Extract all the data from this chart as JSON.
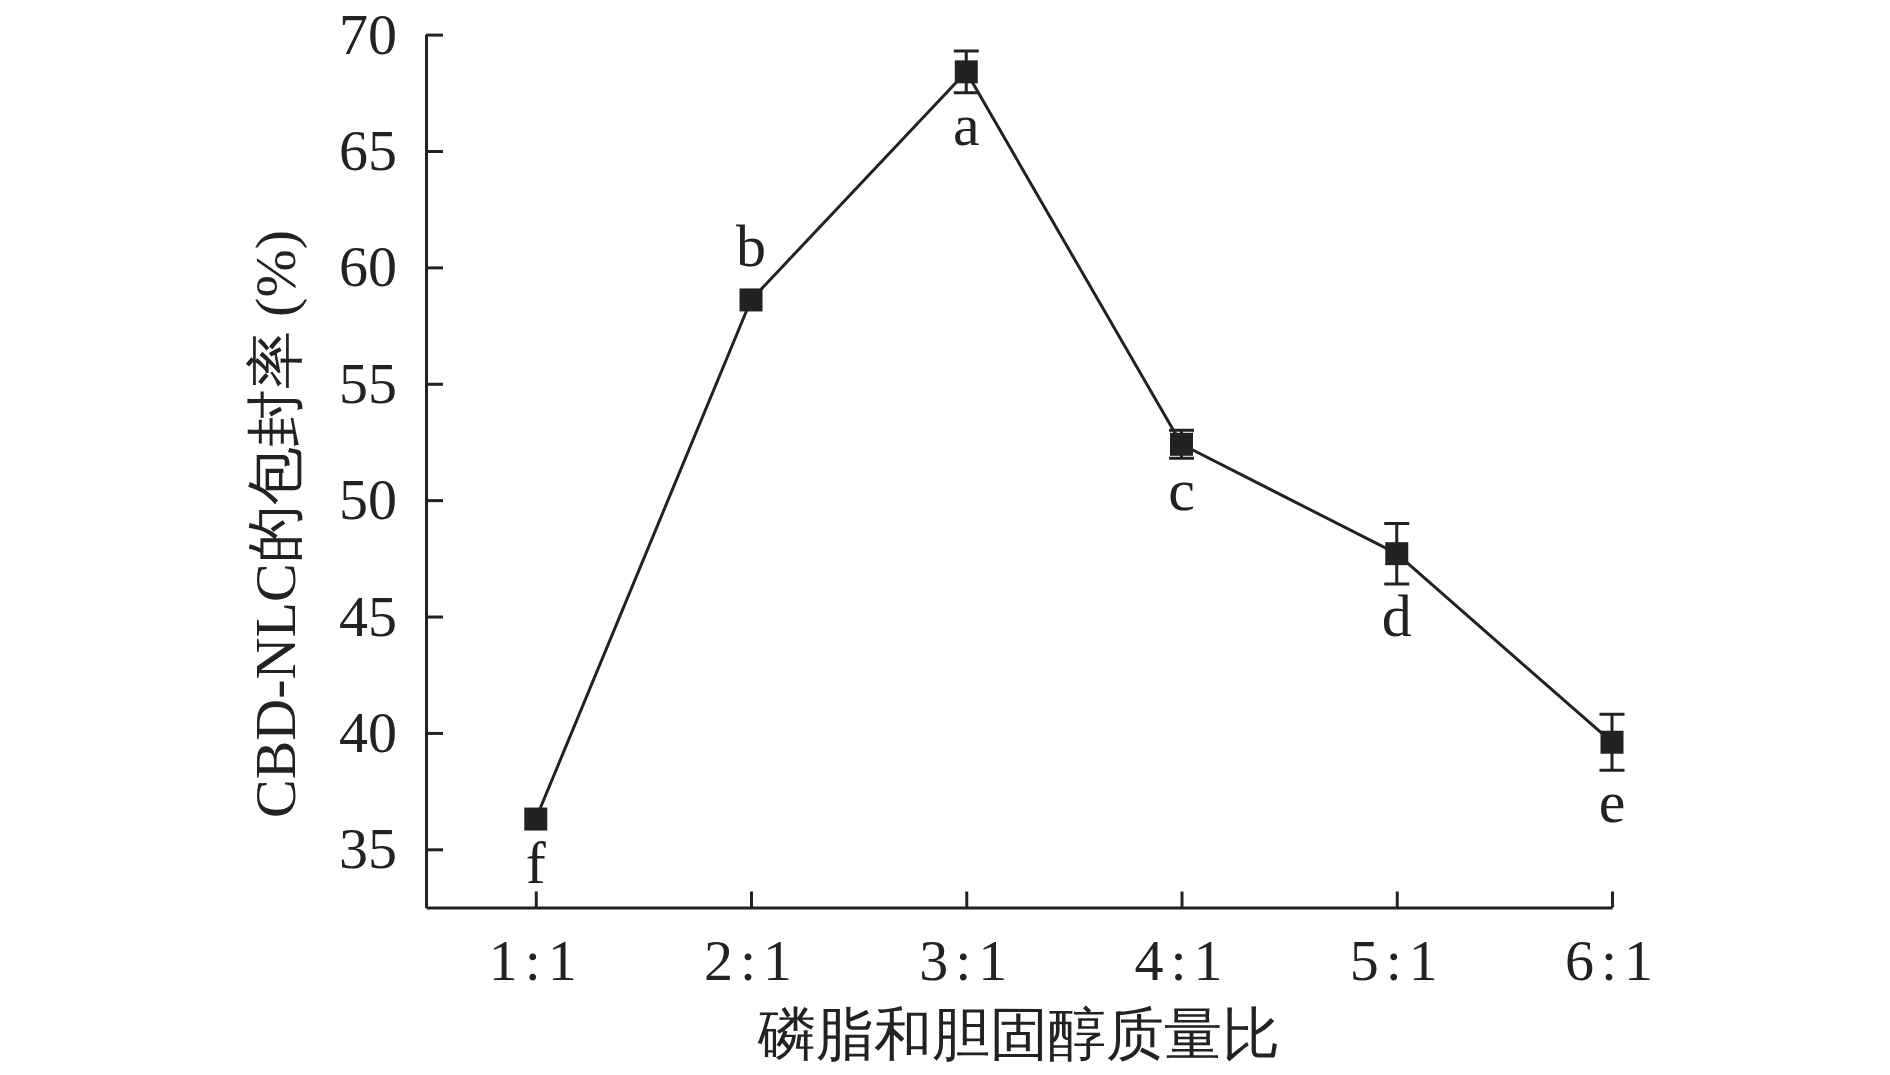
{
  "chart_data": {
    "type": "line",
    "xlabel": "磷脂和胆固醇质量比",
    "ylabel": "CBD-NLC的包封率 (%)",
    "categories": [
      "1:1",
      "2:1",
      "3:1",
      "4:1",
      "5:1",
      "6:1"
    ],
    "values": [
      36.3,
      58.6,
      68.4,
      52.4,
      47.7,
      39.6
    ],
    "errors": [
      null,
      null,
      0.9,
      0.6,
      1.3,
      1.2
    ],
    "color": "#222222",
    "marker": "square",
    "line_style": "solid",
    "ylim": [
      32.5,
      70
    ],
    "yticks": [
      35,
      40,
      45,
      50,
      55,
      60,
      65,
      70
    ],
    "annotations": [
      {
        "text": "f",
        "x": "1:1",
        "y": 36.3
      },
      {
        "text": "b",
        "x": "2:1",
        "y": 58.6
      },
      {
        "text": "a",
        "x": "3:1",
        "y": 68.4
      },
      {
        "text": "c",
        "x": "4:1",
        "y": 52.4
      },
      {
        "text": "d",
        "x": "5:1",
        "y": 47.7
      },
      {
        "text": "e",
        "x": "6:1",
        "y": 39.6
      }
    ]
  }
}
